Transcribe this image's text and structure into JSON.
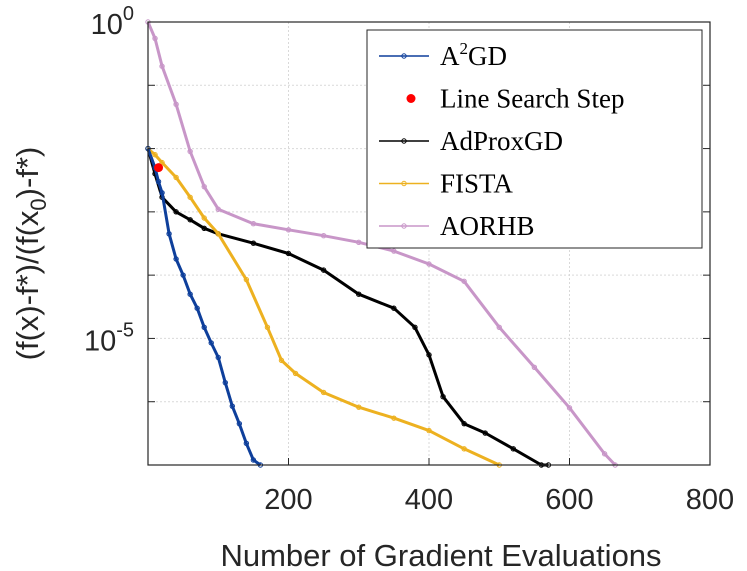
{
  "chart_data": {
    "type": "line",
    "xlabel": "Number of Gradient Evaluations",
    "ylabel": "(f(x)-f*)/(f(x0)-f*)",
    "ylabel_parts": {
      "before": "(f(x)-f*)/(f(x",
      "sub": "0",
      "after": ")-f*)"
    },
    "x_ticks": [
      "200",
      "400",
      "600",
      "800"
    ],
    "y_ticks": [
      {
        "base": "10",
        "exp": "0",
        "value": 1
      },
      {
        "base": "10",
        "exp": "-5",
        "value": 1e-05
      }
    ],
    "xlim": [
      0,
      800
    ],
    "ylim_log10": [
      -7,
      0
    ],
    "yscale": "log",
    "grid": true,
    "legend_position": "top-right",
    "series": [
      {
        "name": "A2GD",
        "legend_label": {
          "base": "A",
          "sup": "2",
          "rest": "GD"
        },
        "color": "#0e3f9b",
        "marker": "circle",
        "x": [
          0,
          10,
          15,
          20,
          30,
          40,
          50,
          60,
          70,
          80,
          90,
          100,
          110,
          120,
          130,
          140,
          150,
          160
        ],
        "y": [
          0.01,
          0.005,
          0.003,
          0.002,
          0.00045,
          0.00018,
          0.0001,
          5e-05,
          3e-05,
          1.5e-05,
          8.5e-06,
          5e-06,
          2e-06,
          8.5e-07,
          4.5e-07,
          2.2e-07,
          1.2e-07,
          1e-07
        ]
      },
      {
        "name": "Line Search Step",
        "color": "#ff0000",
        "marker": "dot",
        "x": [
          15
        ],
        "y": [
          0.005
        ]
      },
      {
        "name": "AdProxGD",
        "color": "#000000",
        "marker": "circle",
        "x": [
          0,
          10,
          20,
          40,
          60,
          80,
          100,
          150,
          200,
          250,
          300,
          350,
          380,
          400,
          420,
          450,
          480,
          520,
          560,
          570
        ],
        "y": [
          0.01,
          0.004,
          0.0017,
          0.001,
          0.00075,
          0.00055,
          0.00045,
          0.00032,
          0.00022,
          0.00012,
          5e-05,
          3e-05,
          1.5e-05,
          5.5e-06,
          1.2e-06,
          4.5e-07,
          3.2e-07,
          1.8e-07,
          1e-07,
          1e-07
        ]
      },
      {
        "name": "FISTA",
        "color": "#edb120",
        "marker": "circle",
        "x": [
          0,
          10,
          20,
          40,
          60,
          80,
          100,
          140,
          170,
          190,
          210,
          250,
          300,
          350,
          400,
          450,
          500
        ],
        "y": [
          0.01,
          0.008,
          0.006,
          0.0035,
          0.0017,
          0.0008,
          0.00045,
          8.5e-05,
          1.5e-05,
          4.5e-06,
          2.8e-06,
          1.4e-06,
          8.2e-07,
          5.5e-07,
          3.5e-07,
          1.8e-07,
          1e-07
        ]
      },
      {
        "name": "AORHB",
        "color": "#c896c8",
        "marker": "circle",
        "x": [
          0,
          10,
          20,
          40,
          60,
          80,
          100,
          150,
          200,
          250,
          300,
          350,
          400,
          450,
          500,
          550,
          600,
          650,
          665
        ],
        "y": [
          1,
          0.55,
          0.2,
          0.05,
          0.009,
          0.0025,
          0.0011,
          0.00065,
          0.00052,
          0.00042,
          0.00033,
          0.00024,
          0.00015,
          8e-05,
          1.5e-05,
          3.5e-06,
          8e-07,
          1.5e-07,
          1e-07
        ]
      }
    ]
  }
}
